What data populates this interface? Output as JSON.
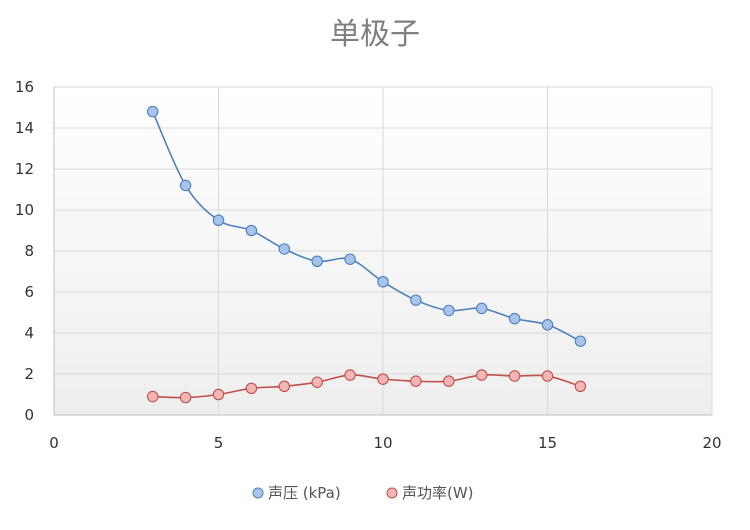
{
  "chart_data": {
    "type": "scatter",
    "title": "单极子",
    "xlabel": "",
    "ylabel": "",
    "xlim": [
      0,
      20
    ],
    "ylim": [
      0,
      16
    ],
    "xticks": [
      0,
      5,
      10,
      15,
      20
    ],
    "yticks": [
      0,
      2,
      4,
      6,
      8,
      10,
      12,
      14,
      16
    ],
    "grid": true,
    "smooth_lines": true,
    "legend_position": "bottom",
    "series": [
      {
        "name": "声压 (kPa)",
        "color": "#4f81bd",
        "marker_fill": "#a9c4eb",
        "points": [
          [
            3,
            14.8
          ],
          [
            4,
            11.2
          ],
          [
            5,
            9.5
          ],
          [
            6,
            9.0
          ],
          [
            7,
            8.1
          ],
          [
            8,
            7.5
          ],
          [
            9,
            7.6
          ],
          [
            10,
            6.5
          ],
          [
            11,
            5.6
          ],
          [
            12,
            5.1
          ],
          [
            13,
            5.2
          ],
          [
            14,
            4.7
          ],
          [
            15,
            4.4
          ],
          [
            16,
            3.6
          ]
        ]
      },
      {
        "name": "声功率(W)",
        "color": "#c0504d",
        "marker_fill": "#f2b6b5",
        "points": [
          [
            3,
            0.9
          ],
          [
            4,
            0.85
          ],
          [
            5,
            1.0
          ],
          [
            6,
            1.3
          ],
          [
            7,
            1.4
          ],
          [
            8,
            1.6
          ],
          [
            9,
            1.95
          ],
          [
            10,
            1.75
          ],
          [
            11,
            1.65
          ],
          [
            12,
            1.65
          ],
          [
            13,
            1.95
          ],
          [
            14,
            1.9
          ],
          [
            15,
            1.9
          ],
          [
            16,
            1.4
          ]
        ]
      }
    ]
  }
}
